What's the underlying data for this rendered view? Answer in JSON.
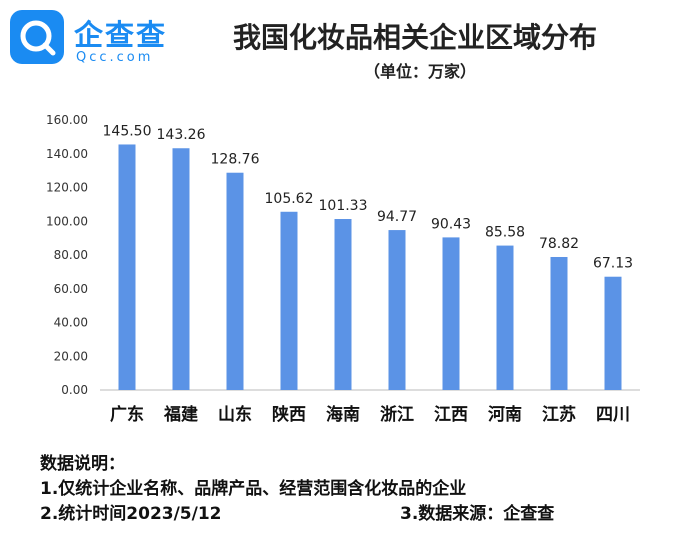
{
  "brand": {
    "logo_cn": "企查查",
    "logo_en": "Qcc.com",
    "color": "#1a8bf2"
  },
  "title": "我国化妆品相关企业区域分布",
  "subtitle": "（单位：万家）",
  "chart_data": {
    "type": "bar",
    "categories": [
      "广东",
      "福建",
      "山东",
      "陕西",
      "海南",
      "浙江",
      "江西",
      "河南",
      "江苏",
      "四川"
    ],
    "values": [
      145.5,
      143.26,
      128.76,
      105.62,
      101.33,
      94.77,
      90.43,
      85.58,
      78.82,
      67.13
    ],
    "value_labels": [
      "145.50",
      "143.26",
      "128.76",
      "105.62",
      "101.33",
      "94.77",
      "90.43",
      "85.58",
      "78.82",
      "67.13"
    ],
    "ylim": [
      0,
      160
    ],
    "yticks": [
      "0.00",
      "20.00",
      "40.00",
      "60.00",
      "80.00",
      "100.00",
      "120.00",
      "140.00",
      "160.00"
    ],
    "grid": false,
    "bar_color": "#5b93e6"
  },
  "notes": {
    "heading": "数据说明：",
    "line1": "1.仅统计企业名称、品牌产品、经营范围含化妆品的企业",
    "line2": "2.统计时间2023/5/12",
    "line3": "3.数据来源：企查查"
  }
}
